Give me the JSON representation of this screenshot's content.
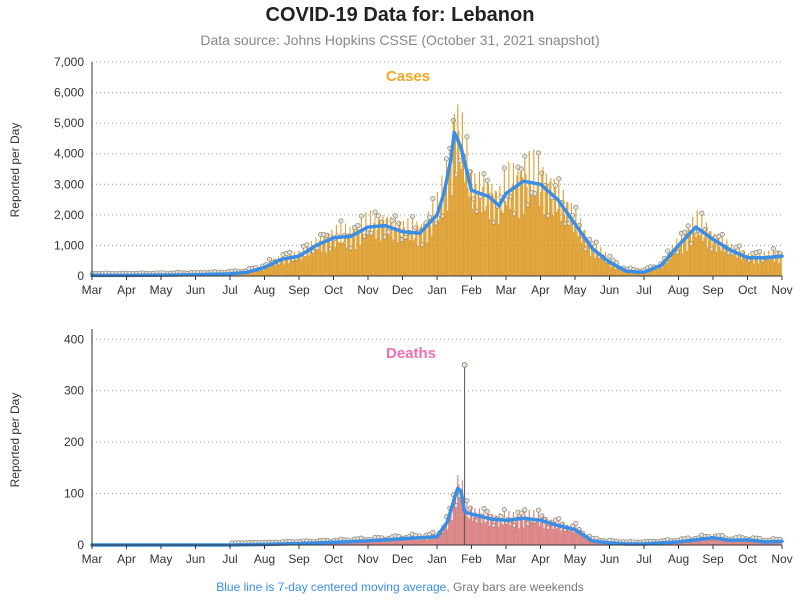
{
  "header": {
    "title": "COVID-19 Data for: Lebanon",
    "subtitle": "Data source: Johns Hopkins CSSE (October 31, 2021 snapshot)"
  },
  "footnote": {
    "blue": "Blue line is 7-day centered moving average,",
    "gray": "Gray bars are weekends"
  },
  "colors": {
    "cases": "#f5a623",
    "deaths": "#ee6fb3",
    "line": "#3a8ee6",
    "grid": "#999999"
  },
  "chart_data": [
    {
      "type": "bar",
      "title": "Cases",
      "ylabel": "Reported per Day",
      "xlabel": "",
      "ylim": [
        0,
        7000
      ],
      "yticks": [
        "0",
        "1,000",
        "2,000",
        "3,000",
        "4,000",
        "5,000",
        "6,000",
        "7,000"
      ],
      "ytick_values": [
        0,
        1000,
        2000,
        3000,
        4000,
        5000,
        6000,
        7000
      ],
      "x_range_months": [
        0,
        20
      ],
      "month_labels": [
        "Mar",
        "Apr",
        "May",
        "Jun",
        "Jul",
        "Aug",
        "Sep",
        "Oct",
        "Nov",
        "Dec",
        "Jan",
        "Feb",
        "Mar",
        "Apr",
        "May",
        "Jun",
        "Jul",
        "Aug",
        "Sep",
        "Oct",
        "Nov"
      ],
      "grid": true,
      "series": [
        {
          "name": "Blue line is 7-day centered moving average",
          "style": "line",
          "x": [
            0.0,
            1.0,
            2.0,
            3.0,
            4.0,
            4.5,
            5.0,
            5.5,
            6.0,
            6.5,
            7.0,
            7.5,
            8.0,
            8.5,
            9.0,
            9.5,
            10.0,
            10.2,
            10.4,
            10.5,
            10.7,
            11.0,
            11.5,
            11.8,
            12.0,
            12.5,
            13.0,
            13.5,
            14.0,
            14.5,
            15.0,
            15.5,
            16.0,
            16.5,
            17.0,
            17.5,
            18.0,
            18.5,
            19.0,
            19.5,
            20.0
          ],
          "values": [
            20,
            20,
            30,
            40,
            70,
            120,
            280,
            550,
            650,
            1000,
            1250,
            1300,
            1600,
            1650,
            1450,
            1400,
            2000,
            2700,
            3800,
            4700,
            4200,
            2800,
            2600,
            2300,
            2700,
            3100,
            3000,
            2500,
            1700,
            900,
            450,
            150,
            120,
            350,
            1000,
            1600,
            1200,
            850,
            600,
            600,
            650
          ]
        }
      ]
    },
    {
      "type": "bar",
      "title": "Deaths",
      "ylabel": "Reported per Day",
      "xlabel": "",
      "ylim": [
        0,
        420
      ],
      "yticks": [
        "0",
        "100",
        "200",
        "300",
        "400"
      ],
      "ytick_values": [
        0,
        100,
        200,
        300,
        400
      ],
      "x_range_months": [
        0,
        20
      ],
      "month_labels": [
        "Mar",
        "Apr",
        "May",
        "Jun",
        "Jul",
        "Aug",
        "Sep",
        "Oct",
        "Nov",
        "Dec",
        "Jan",
        "Feb",
        "Mar",
        "Apr",
        "May",
        "Jun",
        "Jul",
        "Aug",
        "Sep",
        "Oct",
        "Nov"
      ],
      "grid": true,
      "series": [
        {
          "name": "Blue line is 7-day centered moving average",
          "style": "line",
          "x": [
            0.0,
            1.0,
            2.0,
            3.0,
            4.0,
            5.0,
            6.0,
            7.0,
            8.0,
            9.0,
            9.5,
            10.0,
            10.3,
            10.5,
            10.6,
            10.7,
            10.8,
            11.0,
            11.3,
            11.6,
            12.0,
            12.5,
            13.0,
            13.5,
            14.0,
            14.5,
            15.0,
            15.5,
            16.0,
            16.5,
            17.0,
            17.5,
            18.0,
            18.5,
            19.0,
            19.5,
            20.0
          ],
          "values": [
            0,
            0,
            0,
            0,
            0,
            1,
            3,
            5,
            8,
            12,
            14,
            16,
            45,
            90,
            110,
            105,
            65,
            60,
            55,
            50,
            48,
            52,
            48,
            38,
            30,
            8,
            4,
            2,
            2,
            4,
            6,
            10,
            14,
            9,
            10,
            6,
            7
          ]
        },
        {
          "name": "peak",
          "style": "spike",
          "x": [
            10.8
          ],
          "values": [
            350
          ]
        }
      ]
    }
  ]
}
